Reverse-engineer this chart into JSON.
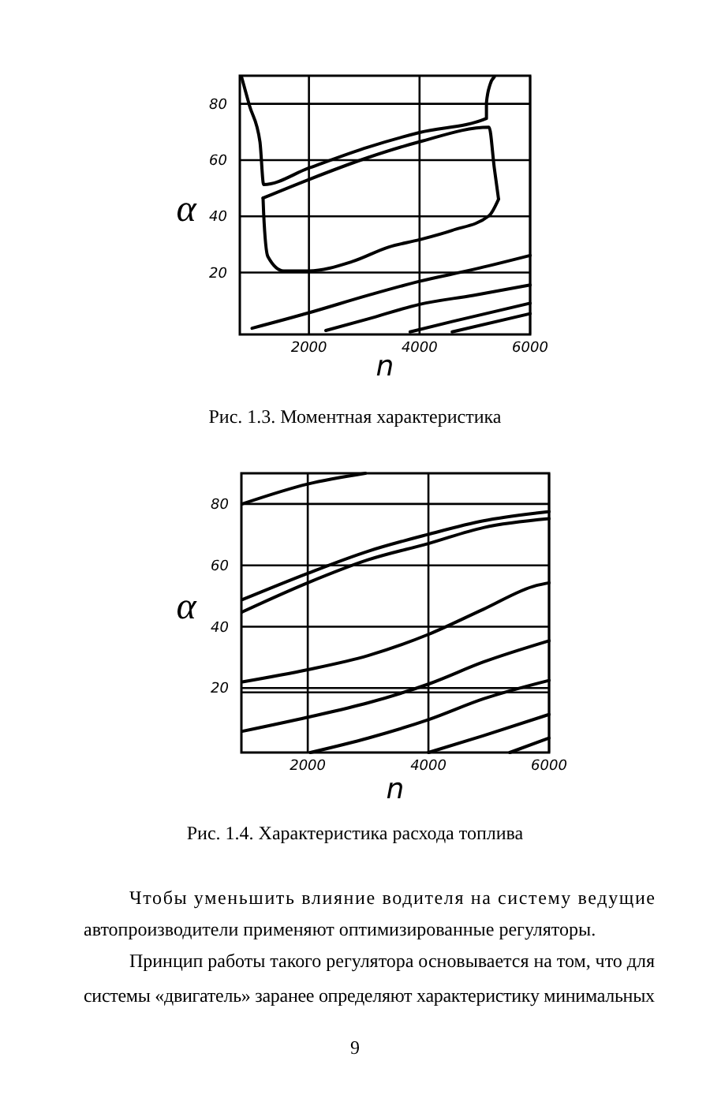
{
  "chart_data": [
    {
      "type": "line",
      "title": "Рис. 1.3. Моментная характеристика",
      "xlabel": "n",
      "ylabel": "α",
      "xlim": [
        750,
        6000
      ],
      "ylim": [
        -2,
        90
      ],
      "xticks": [
        2000,
        4000,
        6000
      ],
      "yticks": [
        20,
        40,
        60,
        80
      ],
      "grid": true,
      "series": [
        {
          "color": "#000000",
          "x": [
            781,
            924,
            1114,
            1181,
            2000,
            3067,
            4000,
            5210,
            5210,
            5276,
            5352
          ],
          "values": [
            89.6,
            79.4,
            66.5,
            51.3,
            57.2,
            64.6,
            69.8,
            74.8,
            80.4,
            86.9,
            89.6
          ]
        },
        {
          "color": "#000000",
          "x": [
            1170,
            1181,
            1257,
            1543,
            2000,
            2781,
            3448,
            4000,
            4590,
            5257,
            5429
          ],
          "values": [
            46.5,
            41,
            25.7,
            20.6,
            20.6,
            23.9,
            29.1,
            31.7,
            35,
            40.2,
            46.1
          ]
        },
        {
          "color": "#000000",
          "x": [
            1170,
            2000,
            3067,
            4000,
            5257,
            5352,
            5429
          ],
          "values": [
            46.5,
            53.1,
            60.9,
            66.5,
            71.7,
            57.2,
            46.1
          ]
        },
        {
          "color": "#000000",
          "x": [
            971,
            2000,
            3067,
            4000,
            4971,
            6000
          ],
          "values": [
            0.2,
            5.7,
            11.9,
            16.9,
            21.1,
            26.1
          ]
        },
        {
          "color": "#000000",
          "x": [
            2305,
            3067,
            4000,
            4971,
            6000
          ],
          "values": [
            -0.6,
            3.5,
            8.7,
            11.9,
            15.6
          ]
        },
        {
          "color": "#000000",
          "x": [
            3829,
            4590,
            6000
          ],
          "values": [
            -1.1,
            2.6,
            9.1
          ]
        },
        {
          "color": "#000000",
          "x": [
            4590,
            6000
          ],
          "values": [
            -1.1,
            5.4
          ]
        }
      ]
    },
    {
      "type": "line",
      "title": "Рис. 1.4. Характеристика расхода топлива",
      "xlabel": "n",
      "ylabel": "α",
      "xlim": [
        900,
        6000
      ],
      "ylim": [
        -1,
        90
      ],
      "xticks": [
        2000,
        4000,
        6000
      ],
      "yticks": [
        20,
        40,
        60,
        80
      ],
      "grid": true,
      "ref_lines": [
        {
          "axis": "y",
          "value": 18.6,
          "label": null
        }
      ],
      "series": [
        {
          "color": "#000000",
          "x": [
            913,
            2000,
            2957
          ],
          "values": [
            80,
            86.5,
            90
          ]
        },
        {
          "color": "#000000",
          "x": [
            913,
            2000,
            3000,
            4000,
            4913,
            5783,
            6000
          ],
          "values": [
            48.8,
            57.4,
            64.6,
            70.1,
            74.5,
            77,
            77.5
          ]
        },
        {
          "color": "#000000",
          "x": [
            913,
            2000,
            3000,
            4000,
            4913,
            6000
          ],
          "values": [
            44.8,
            54.3,
            61.8,
            67.1,
            72.3,
            75.2
          ]
        },
        {
          "color": "#000000",
          "x": [
            913,
            2000,
            3000,
            4000,
            4913,
            5783,
            6000
          ],
          "values": [
            22,
            26,
            30.6,
            37.5,
            45.7,
            53.4,
            54.3
          ]
        },
        {
          "color": "#000000",
          "x": [
            913,
            2000,
            3000,
            4000,
            4913,
            6000
          ],
          "values": [
            5.9,
            10.5,
            15.2,
            21.3,
            28.5,
            35.4
          ]
        },
        {
          "color": "#000000",
          "x": [
            2043,
            3000,
            4000,
            4913,
            6000
          ],
          "values": [
            -1,
            3.7,
            9.7,
            16.5,
            22.5
          ]
        },
        {
          "color": "#000000",
          "x": [
            4000,
            4913,
            6000
          ],
          "values": [
            -1,
            4.5,
            11.4
          ]
        },
        {
          "color": "#000000",
          "x": [
            5348,
            6000
          ],
          "values": [
            -1,
            3.7
          ]
        }
      ],
      "annotations": [
        "Чтобы уменьшить влияние водителя на систему ведущие",
        "автопроизводители применяют оптимизированные регуляторы.",
        "Принцип работы такого регулятора основывается на том, что для",
        "системы «двигатель» заранее определяют характеристику минимальных",
        "9"
      ]
    }
  ]
}
